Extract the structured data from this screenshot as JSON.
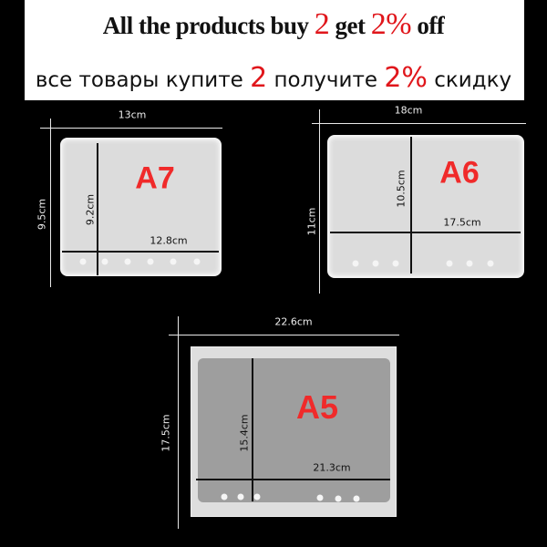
{
  "banner": {
    "line1": {
      "pre": "All the products buy ",
      "n1": "2",
      "mid": " get ",
      "n2": "2%",
      "post": " off"
    },
    "line2": {
      "pre": "все товары купите ",
      "n1": "2",
      "mid": " получите ",
      "n2": "2%",
      "post": " скидку"
    }
  },
  "accent_color": "#e0161b",
  "molds": {
    "a7": {
      "label": "A7",
      "outer_width": "13cm",
      "outer_height": "9.5cm",
      "inner_height": "9.2cm",
      "inner_width": "12.8cm"
    },
    "a6": {
      "label": "A6",
      "outer_width": "18cm",
      "outer_height": "11cm",
      "inner_height": "10.5cm",
      "inner_width": "17.5cm"
    },
    "a5": {
      "label": "A5",
      "outer_width": "22.6cm",
      "outer_height": "17.5cm",
      "inner_height": "15.4cm",
      "inner_width": "21.3cm"
    }
  }
}
